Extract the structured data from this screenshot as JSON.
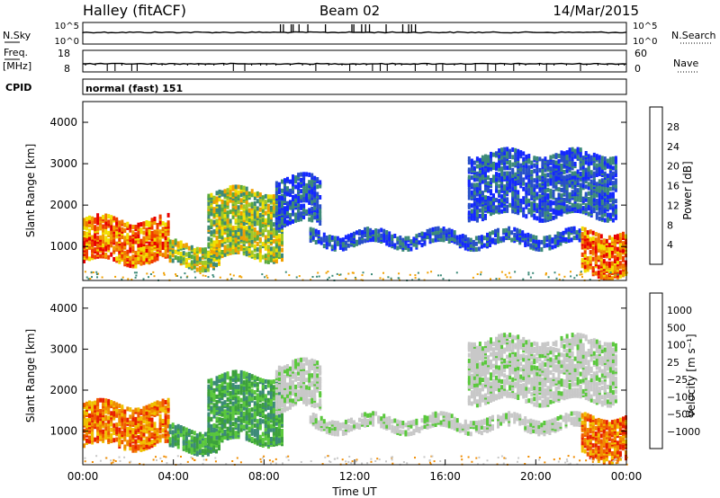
{
  "header": {
    "station": "Halley (fitACF)",
    "beam": "Beam 02",
    "date": "14/Mar/2015"
  },
  "strip_nsky": {
    "left_label": "N.Sky",
    "right_label": "N.Search",
    "left_ticks": [
      "10^5",
      "10^0"
    ],
    "right_ticks": [
      "10^5",
      "10^0"
    ]
  },
  "strip_freq": {
    "left_label_top": "Freq.",
    "left_label_bottom": "[MHz]",
    "right_label": "Nave",
    "left_ticks": [
      "18",
      "8"
    ],
    "right_ticks": [
      "60",
      "0"
    ]
  },
  "cpid": {
    "label": "CPID",
    "value": "normal (fast) 151"
  },
  "chart_data": [
    {
      "type": "heatmap",
      "title": "",
      "ylabel": "Slant Range [km]",
      "xlabel": "",
      "ylim": [
        180,
        4500
      ],
      "y_ticks": [
        "1000",
        "2000",
        "3000",
        "4000"
      ],
      "colorbar": {
        "label": "Power [dB]",
        "ticks": [
          "4",
          "8",
          "12",
          "16",
          "20",
          "24",
          "28"
        ],
        "colors": [
          "#1428ff",
          "#2850c8",
          "#3c8a78",
          "#5aaa3c",
          "#a0c828",
          "#f0e000",
          "#f0a000",
          "#f07800",
          "#f03c00",
          "#e80000"
        ]
      },
      "echo_bands": [
        {
          "t_start": 0.0,
          "t_end": 3.8,
          "range_min": 700,
          "range_max": 1700,
          "level": "high"
        },
        {
          "t_start": 3.8,
          "t_end": 6.0,
          "range_min": 600,
          "range_max": 1100,
          "level": "mid"
        },
        {
          "t_start": 5.5,
          "t_end": 8.8,
          "range_min": 800,
          "range_max": 2400,
          "level": "mid"
        },
        {
          "t_start": 8.5,
          "t_end": 10.5,
          "range_min": 1600,
          "range_max": 2700,
          "level": "low"
        },
        {
          "t_start": 10.0,
          "t_end": 22.0,
          "range_min": 1100,
          "range_max": 1400,
          "level": "low"
        },
        {
          "t_start": 17.0,
          "t_end": 23.5,
          "range_min": 1800,
          "range_max": 3300,
          "level": "low"
        },
        {
          "t_start": 22.0,
          "t_end": 24.0,
          "range_min": 400,
          "range_max": 1400,
          "level": "high"
        }
      ]
    },
    {
      "type": "heatmap",
      "title": "",
      "ylabel": "Slant Range [km]",
      "xlabel": "Time UT",
      "ylim": [
        180,
        4500
      ],
      "x_ticks": [
        "00:00",
        "04:00",
        "08:00",
        "12:00",
        "16:00",
        "20:00",
        "00:00"
      ],
      "y_ticks": [
        "1000",
        "2000",
        "3000",
        "4000"
      ],
      "colorbar": {
        "label": "Velocity [m s⁻¹]",
        "ticks": [
          "1000",
          "500",
          "100",
          "25",
          "−25",
          "−100",
          "−500",
          "−1000"
        ],
        "colors": [
          "#1e3cb4",
          "#2850c8",
          "#3c8a78",
          "#3ca03c",
          "#5ac83c",
          "#c8c8c8",
          "#f0c000",
          "#f08c00",
          "#f05a00",
          "#e82000"
        ]
      },
      "echo_bands": [
        {
          "t_start": 0.0,
          "t_end": 3.8,
          "range_min": 700,
          "range_max": 1700,
          "level": "neg"
        },
        {
          "t_start": 3.8,
          "t_end": 6.0,
          "range_min": 600,
          "range_max": 1100,
          "level": "pos"
        },
        {
          "t_start": 5.5,
          "t_end": 8.8,
          "range_min": 800,
          "range_max": 2400,
          "level": "pos"
        },
        {
          "t_start": 8.5,
          "t_end": 10.5,
          "range_min": 1600,
          "range_max": 2700,
          "level": "zero"
        },
        {
          "t_start": 10.0,
          "t_end": 22.0,
          "range_min": 1100,
          "range_max": 1400,
          "level": "zero"
        },
        {
          "t_start": 17.0,
          "t_end": 23.5,
          "range_min": 1800,
          "range_max": 3300,
          "level": "zero"
        },
        {
          "t_start": 22.0,
          "t_end": 24.0,
          "range_min": 400,
          "range_max": 1400,
          "level": "neg"
        }
      ]
    }
  ]
}
